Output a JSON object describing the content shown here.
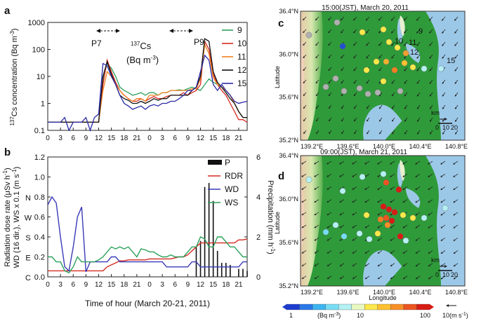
{
  "panel_a": {
    "label": "a",
    "ylabel_pre": "137",
    "ylabel_main": "Cs concentration (Bq m",
    "ylabel_sup": "-3",
    "ylabel_end": ")",
    "yticks": [
      "1000",
      "100",
      "10",
      "1",
      "0.1"
    ],
    "xticks": [
      "0",
      "3",
      "6",
      "9",
      "12",
      "15",
      "18",
      "21",
      "0",
      "3",
      "6",
      "9",
      "12",
      "15",
      "18",
      "21"
    ],
    "annot_species_sup": "137",
    "annot_species": "Cs",
    "annot_unit": "(Bq m",
    "annot_unit_sup": "-3",
    "annot_unit_end": ")",
    "plume_labels": [
      "P7",
      "P9"
    ],
    "legend": [
      {
        "name": "9",
        "color": "#2ca05a"
      },
      {
        "name": "10",
        "color": "#d62a20"
      },
      {
        "name": "11",
        "color": "#f08020"
      },
      {
        "name": "12",
        "color": "#111111"
      },
      {
        "name": "15",
        "color": "#2a2aa8"
      }
    ]
  },
  "panel_b": {
    "label": "b",
    "left_ylabel_1": "Radiation dose rate (μSv h",
    "left_ylabel_1_sup": "-1",
    "left_ylabel_1_end": ")",
    "left_ylabel_2": "WD (16 dir.), WS x 0.1 (m s",
    "left_ylabel_2_sup": "-1",
    "left_ylabel_2_end": ")",
    "right_ylabel": "Precipitation (mm h",
    "right_ylabel_sup": "-1",
    "right_ylabel_end": ")",
    "yticks": [
      "1.2",
      "1.0",
      "0.8",
      "0.6",
      "0.4",
      "0.2",
      "0.0"
    ],
    "right_yticks": [
      "6",
      "4",
      "2",
      "0"
    ],
    "dir_labels": [
      "N",
      "W",
      "S",
      "E",
      "C"
    ],
    "xticks": [
      "0",
      "3",
      "6",
      "9",
      "12",
      "15",
      "18",
      "21",
      "0",
      "3",
      "6",
      "9",
      "12",
      "15",
      "18",
      "21"
    ],
    "xlabel": "Time of hour (March 20-21, 2011)",
    "legend": [
      {
        "name": "P",
        "color": "#111111"
      },
      {
        "name": "RDR",
        "color": "#d62a20"
      },
      {
        "name": "WD",
        "color": "#3a3ab8"
      },
      {
        "name": "WS",
        "color": "#2ca05a"
      }
    ]
  },
  "panel_c": {
    "label": "c",
    "title": "15:00(JST), March 20, 2011",
    "lat_ticks": [
      "36.4°N",
      "36.0°N",
      "35.6°N",
      "35.2°N"
    ],
    "lon_ticks": [
      "139.2°E",
      "139.6°E",
      "140.0°E",
      "140.4°E",
      "140.8°E"
    ],
    "ylabel": "Latitude",
    "site_labels": [
      "9",
      "10",
      "11",
      "12",
      "15"
    ],
    "scale_unit": "km",
    "scale_ticks": [
      "0",
      "10",
      "20"
    ]
  },
  "panel_d": {
    "label": "d",
    "title": "09:00(JST), March 21, 2011",
    "lat_ticks": [
      "36.4°N",
      "36.0°N",
      "35.6°N",
      "35.2°N"
    ],
    "lon_ticks": [
      "139.2°E",
      "139.6°E",
      "140.0°E",
      "140.4°E",
      "140.8°E"
    ],
    "ylabel": "Latitude",
    "xlabel": "Longitude",
    "scale_unit": "km",
    "scale_ticks": [
      "0",
      "10",
      "20"
    ]
  },
  "colorbar": {
    "min_label": "1",
    "unit_label": "(Bq m",
    "unit_sup": "-3",
    "unit_end": ")",
    "mid_label": "10",
    "max_label": "100",
    "colors": [
      "#1e3cd0",
      "#2a78e8",
      "#3cb4f0",
      "#78dcf4",
      "#b4f0f4",
      "#e8f8c0",
      "#fce84a",
      "#fcc030",
      "#f89028",
      "#ec5420",
      "#d81c14"
    ],
    "wind_ref": "10(m s",
    "wind_ref_sup": "-1",
    "wind_ref_end": ")"
  },
  "chart_data": [
    {
      "type": "line",
      "title": "137Cs concentration (Bq m-3)",
      "xlabel": "Time of hour (March 20-21, 2011)",
      "ylabel": "137Cs concentration (Bq m-3)",
      "yscale": "log",
      "ylim": [
        0.1,
        1000
      ],
      "x": [
        0,
        1,
        2,
        3,
        4,
        5,
        6,
        7,
        8,
        9,
        10,
        11,
        12,
        13,
        14,
        15,
        16,
        17,
        18,
        19,
        20,
        21,
        22,
        23,
        24,
        25,
        26,
        27,
        28,
        29,
        30,
        31,
        32,
        33,
        34,
        35,
        36,
        37,
        38,
        39,
        40,
        41,
        42,
        43,
        44,
        45,
        46,
        47
      ],
      "series": [
        {
          "name": "9",
          "values": [
            0.2,
            0.2,
            0.2,
            0.2,
            0.2,
            0.2,
            0.2,
            0.2,
            0.2,
            0.2,
            0.2,
            0.2,
            0.2,
            8,
            30,
            20,
            10,
            4,
            3,
            2.5,
            2,
            2.2,
            2.5,
            2,
            2.5,
            2.5,
            2,
            2.5,
            2.5,
            3,
            3,
            3.2,
            3,
            3.5,
            4,
            3.5,
            3,
            5,
            8,
            6,
            5,
            4,
            3,
            2,
            1,
            0.5,
            0.3,
            0.3
          ]
        },
        {
          "name": "10",
          "values": [
            0.2,
            0.2,
            0.2,
            0.2,
            0.2,
            0.2,
            0.2,
            0.2,
            0.2,
            0.2,
            0.2,
            0.2,
            0.2,
            5,
            40,
            15,
            6,
            3,
            2,
            1.5,
            1.2,
            1.2,
            1.5,
            1.2,
            1.5,
            1.8,
            1.5,
            1.5,
            1.8,
            2,
            2,
            2,
            2.5,
            2,
            2.5,
            3,
            5,
            200,
            100,
            12,
            5,
            3,
            2,
            1,
            0.5,
            0.25,
            0.25,
            0.2
          ]
        },
        {
          "name": "11",
          "values": [
            0.2,
            0.2,
            0.2,
            0.2,
            0.2,
            0.2,
            0.2,
            0.2,
            0.2,
            0.2,
            0.2,
            0.2,
            0.2,
            3,
            15,
            10,
            5,
            3,
            2,
            1.5,
            1.2,
            1.5,
            1.5,
            1.2,
            2,
            2,
            2,
            2.5,
            2.5,
            3,
            3,
            3,
            3,
            3,
            3.5,
            3.5,
            8,
            150,
            70,
            9,
            5,
            4,
            3,
            2,
            1,
            0.5,
            0.3,
            0.3
          ]
        },
        {
          "name": "12",
          "values": [
            0.2,
            0.2,
            0.2,
            0.2,
            0.2,
            0.2,
            0.2,
            0.2,
            0.2,
            0.2,
            0.2,
            0.2,
            0.2,
            10,
            35,
            12,
            5,
            2,
            1.5,
            1.3,
            1,
            1,
            1.2,
            1,
            1.2,
            1.5,
            1.3,
            1.5,
            1.5,
            2,
            2,
            2,
            2,
            2,
            3,
            4,
            10,
            250,
            200,
            15,
            6,
            4,
            2.5,
            1.5,
            1,
            0.5,
            0.3,
            0.3
          ]
        },
        {
          "name": "15",
          "values": [
            0.2,
            0.2,
            0.2,
            0.2,
            0.3,
            0.1,
            0.2,
            0.2,
            0.2,
            0.3,
            0.1,
            0.3,
            0.4,
            30,
            25,
            10,
            5,
            2,
            1,
            0.8,
            0.6,
            0.7,
            0.8,
            0.6,
            0.8,
            0.9,
            0.8,
            1,
            1,
            1.2,
            1.2,
            1.5,
            2,
            3,
            3,
            4,
            15,
            60,
            40,
            5,
            3,
            5,
            3,
            2,
            1.2,
            1,
            1.1,
            1.2
          ]
        }
      ]
    },
    {
      "type": "line",
      "title": "Radiation dose rate, wind direction, wind speed and precipitation",
      "xlabel": "Time of hour (March 20-21, 2011)",
      "ylabel": "Radiation dose rate (μSv h-1); WD (16 dir.), WS x 0.1 (m s-1)",
      "ylim": [
        0,
        1.2
      ],
      "y2label": "Precipitation (mm h-1)",
      "y2lim": [
        0,
        6
      ],
      "x": [
        0,
        1,
        2,
        3,
        4,
        5,
        6,
        7,
        8,
        9,
        10,
        11,
        12,
        13,
        14,
        15,
        16,
        17,
        18,
        19,
        20,
        21,
        22,
        23,
        24,
        25,
        26,
        27,
        28,
        29,
        30,
        31,
        32,
        33,
        34,
        35,
        36,
        37,
        38,
        39,
        40,
        41,
        42,
        43,
        44,
        45,
        46,
        47
      ],
      "series": [
        {
          "name": "RDR",
          "values": [
            0.06,
            0.06,
            0.06,
            0.06,
            0.06,
            0.06,
            0.06,
            0.06,
            0.06,
            0.06,
            0.06,
            0.06,
            0.06,
            0.06,
            0.1,
            0.12,
            0.14,
            0.16,
            0.16,
            0.17,
            0.17,
            0.17,
            0.17,
            0.17,
            0.18,
            0.18,
            0.18,
            0.18,
            0.18,
            0.18,
            0.19,
            0.2,
            0.2,
            0.22,
            0.26,
            0.3,
            0.34,
            0.34,
            0.34,
            0.34,
            0.34,
            0.34,
            0.34,
            0.34,
            0.34,
            0.37,
            0.37,
            0.38
          ]
        },
        {
          "name": "WD",
          "values": [
            0.72,
            0.8,
            0.74,
            0.4,
            0.1,
            0.06,
            0.3,
            0.6,
            0.7,
            0.05,
            0.15,
            0.15,
            0.15,
            0.15,
            0.15,
            0.2,
            0.2,
            0.15,
            0.15,
            0.15,
            0.15,
            0.15,
            0.15,
            0.15,
            0.15,
            0.15,
            0.15,
            0.15,
            0.1,
            0.1,
            0.1,
            0.1,
            0.1,
            0.1,
            0.15,
            0.15,
            0.1,
            0.1,
            0.1,
            0.1,
            0.1,
            0.1,
            0.1,
            0.1,
            0.1,
            0.1,
            0.15,
            0.15
          ]
        },
        {
          "name": "WS",
          "values": [
            0.2,
            0.2,
            0.15,
            0.15,
            0.06,
            0.04,
            0.1,
            0.2,
            0.15,
            0.15,
            0.15,
            0.15,
            0.17,
            0.2,
            0.25,
            0.3,
            0.28,
            0.3,
            0.28,
            0.3,
            0.25,
            0.2,
            0.28,
            0.27,
            0.25,
            0.25,
            0.22,
            0.2,
            0.2,
            0.22,
            0.2,
            0.2,
            0.2,
            0.25,
            0.3,
            0.3,
            0.4,
            0.38,
            0.3,
            0.3,
            0.4,
            0.4,
            0.35,
            0.3,
            0.3,
            0.25,
            0.2,
            0.2
          ]
        },
        {
          "name": "P",
          "axis": "right",
          "values": [
            0,
            0,
            0,
            0,
            0,
            0,
            0,
            0,
            0,
            0,
            0,
            0,
            0,
            0,
            0,
            0,
            0,
            0,
            0,
            0,
            0,
            0,
            0,
            0,
            0,
            0,
            0,
            0,
            0,
            0,
            0,
            0,
            0,
            0,
            0,
            1.5,
            1.8,
            4.5,
            4.7,
            3.8,
            1.3,
            0.7,
            0.7,
            0.6,
            0,
            0.4,
            0.4,
            0.3
          ]
        }
      ]
    }
  ]
}
